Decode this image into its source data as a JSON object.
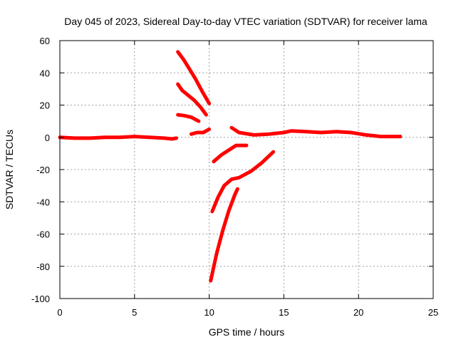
{
  "chart_data": {
    "type": "scatter",
    "title": "Day 045 of 2023, Sidereal Day-to-day VTEC variation (SDTVAR) for receiver lama",
    "xlabel": "GPS time / hours",
    "ylabel": "SDTVAR / TECUs",
    "xlim": [
      0,
      25
    ],
    "ylim": [
      -100,
      60
    ],
    "xticks": [
      "0",
      "5",
      "10",
      "15",
      "20",
      "25"
    ],
    "yticks": [
      "60",
      "40",
      "20",
      "0",
      "-20",
      "-40",
      "-60",
      "-80",
      "-100"
    ],
    "grid": true,
    "color": "#ff0000",
    "series": [
      {
        "x": [
          0.0,
          1.0,
          2.0,
          3.0,
          4.0,
          5.0,
          6.0,
          7.0,
          7.5,
          7.8
        ],
        "y": [
          0,
          -0.5,
          -0.5,
          0,
          0,
          0.5,
          0,
          -0.5,
          -1,
          -0.5
        ]
      },
      {
        "x": [
          7.9,
          8.3,
          8.7,
          9.1,
          9.5,
          10.0
        ],
        "y": [
          53,
          48,
          42,
          36,
          29,
          21
        ]
      },
      {
        "x": [
          7.9,
          8.2,
          8.6,
          9.0,
          9.4,
          9.8
        ],
        "y": [
          33,
          29,
          26,
          23,
          19,
          14
        ]
      },
      {
        "x": [
          7.9,
          8.3,
          8.8,
          9.3
        ],
        "y": [
          14,
          13.5,
          12.5,
          10
        ]
      },
      {
        "x": [
          8.8,
          9.2,
          9.6,
          10.0
        ],
        "y": [
          2,
          3,
          3,
          5
        ]
      },
      {
        "x": [
          10.3,
          10.8,
          11.3,
          11.8,
          12.5
        ],
        "y": [
          -15,
          -11,
          -8,
          -5,
          -5
        ]
      },
      {
        "x": [
          10.2,
          10.6,
          11.0,
          11.5,
          12.0,
          12.8,
          13.5,
          14.3
        ],
        "y": [
          -46,
          -37,
          -30,
          -26,
          -25,
          -21,
          -16,
          -9
        ]
      },
      {
        "x": [
          10.1,
          10.5,
          10.9,
          11.3,
          11.7,
          11.9
        ],
        "y": [
          -89,
          -72,
          -58,
          -46,
          -36,
          -32
        ]
      },
      {
        "x": [
          11.5,
          12.0,
          13.0,
          14.0,
          15.0,
          15.5,
          16.5,
          17.5,
          18.5,
          19.5,
          20.5,
          21.5,
          22.8
        ],
        "y": [
          6,
          3,
          1.5,
          2,
          3,
          4,
          3.5,
          3,
          3.5,
          3,
          1.5,
          0.5,
          0.5
        ]
      }
    ]
  }
}
